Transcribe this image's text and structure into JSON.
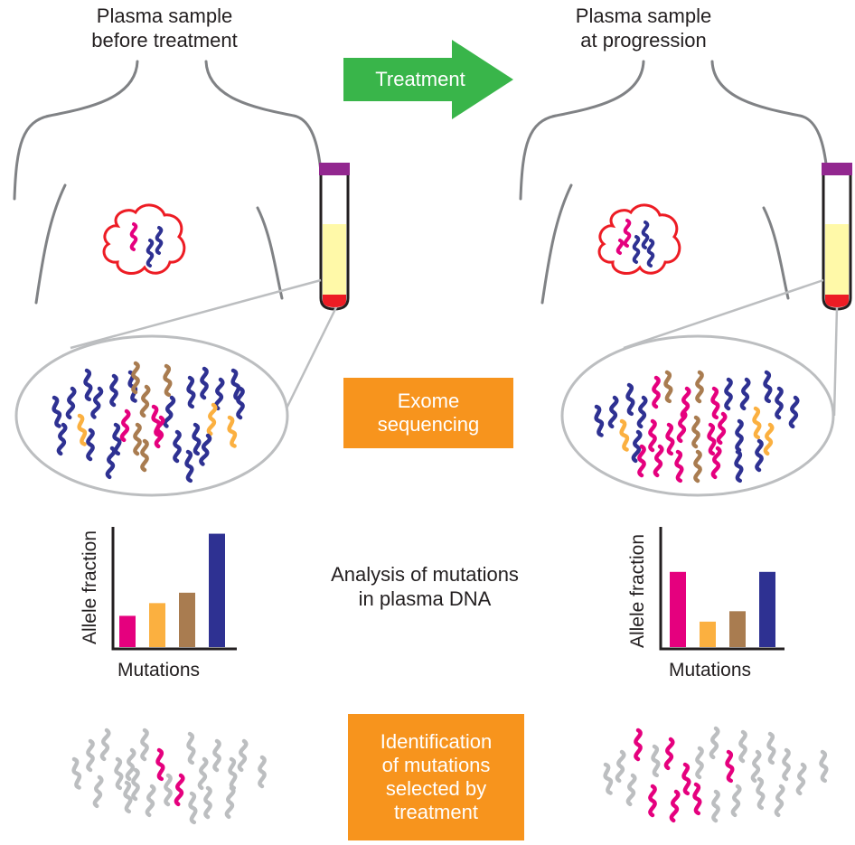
{
  "colors": {
    "magenta": "#e5007e",
    "light_orange": "#fbb040",
    "brown": "#a97c50",
    "navy": "#2e3192",
    "grey": "#bcbec0",
    "tumor_outline": "#ed1c24",
    "arrow_green": "#39b54a",
    "box_orange": "#f7941d",
    "body_outline": "#808285",
    "tube_cap": "#92278f",
    "plasma": "#fff9a8",
    "blood": "#ed1c24"
  },
  "left": {
    "title": "Plasma sample\nbefore treatment"
  },
  "right": {
    "title": "Plasma sample\nat progression"
  },
  "arrow": {
    "label": "Treatment"
  },
  "steps": {
    "exome": "Exome\nsequencing",
    "analysis": "Analysis of mutations\nin plasma DNA",
    "identification": "Identification\nof mutations\nselected by\ntreatment"
  },
  "chart_data": [
    {
      "type": "bar",
      "categories": [
        "",
        "",
        "",
        ""
      ],
      "values": [
        0.27,
        0.38,
        0.47,
        0.98
      ],
      "colors": [
        "#e5007e",
        "#fbb040",
        "#a97c50",
        "#2e3192"
      ],
      "xlabel": "Mutations",
      "ylabel": "Allele fraction",
      "ylim": [
        0,
        1
      ]
    },
    {
      "type": "bar",
      "categories": [
        "",
        "",
        "",
        ""
      ],
      "values": [
        0.65,
        0.22,
        0.31,
        0.65
      ],
      "colors": [
        "#e5007e",
        "#fbb040",
        "#a97c50",
        "#2e3192"
      ],
      "xlabel": "Mutations",
      "ylabel": "Allele fraction",
      "ylim": [
        0,
        1
      ]
    }
  ]
}
